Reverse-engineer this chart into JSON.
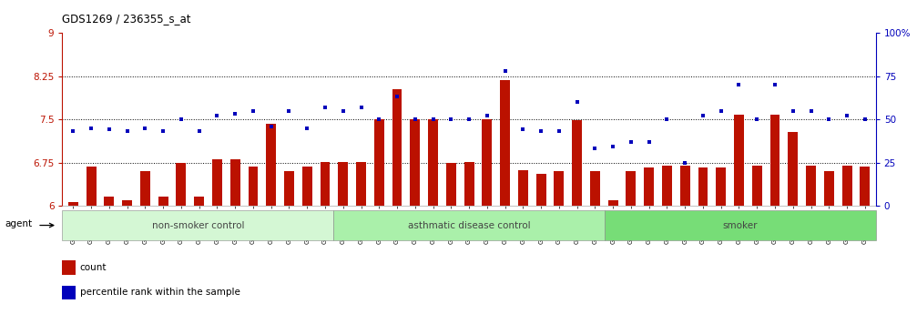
{
  "title": "GDS1269 / 236355_s_at",
  "samples": [
    "GSM38345",
    "GSM38346",
    "GSM38348",
    "GSM38350",
    "GSM38351",
    "GSM38353",
    "GSM38355",
    "GSM38356",
    "GSM38358",
    "GSM38362",
    "GSM38368",
    "GSM38371",
    "GSM38373",
    "GSM38377",
    "GSM38385",
    "GSM38361",
    "GSM38363",
    "GSM38364",
    "GSM38365",
    "GSM38370",
    "GSM38372",
    "GSM38375",
    "GSM38378",
    "GSM38379",
    "GSM38381",
    "GSM38383",
    "GSM38386",
    "GSM38387",
    "GSM38388",
    "GSM38389",
    "GSM38347",
    "GSM38349",
    "GSM38352",
    "GSM38354",
    "GSM38357",
    "GSM38359",
    "GSM38360",
    "GSM38366",
    "GSM38367",
    "GSM38369",
    "GSM38374",
    "GSM38376",
    "GSM38380",
    "GSM38382",
    "GSM38384"
  ],
  "bar_values": [
    6.07,
    6.68,
    6.16,
    6.1,
    6.6,
    6.16,
    6.75,
    6.16,
    6.8,
    6.8,
    6.68,
    7.42,
    6.6,
    6.68,
    6.76,
    6.76,
    6.76,
    7.5,
    8.02,
    7.5,
    7.5,
    6.74,
    6.76,
    7.5,
    8.18,
    6.62,
    6.56,
    6.6,
    7.48,
    6.6,
    6.1,
    6.6,
    6.66,
    6.7,
    6.7,
    6.66,
    6.66,
    7.58,
    6.7,
    7.58,
    7.28,
    6.7,
    6.6,
    6.7,
    6.68
  ],
  "percentile_values": [
    43,
    45,
    44,
    43,
    45,
    43,
    50,
    43,
    52,
    53,
    55,
    46,
    55,
    45,
    57,
    55,
    57,
    50,
    63,
    50,
    50,
    50,
    50,
    52,
    78,
    44,
    43,
    43,
    60,
    33,
    34,
    37,
    37,
    50,
    25,
    52,
    55,
    70,
    50,
    70,
    55,
    55,
    50,
    52,
    50
  ],
  "group_labels": [
    "non-smoker control",
    "asthmatic disease control",
    "smoker"
  ],
  "group_sizes": [
    15,
    15,
    15
  ],
  "group_colors_left": [
    "#e8ffe8",
    "#ccffcc",
    "#aaddaa"
  ],
  "group_colors_right": [
    "#ccffcc",
    "#aaffaa",
    "#88cc88"
  ],
  "bar_color": "#bb1100",
  "dot_color": "#0000bb",
  "ylim_left": [
    6.0,
    9.0
  ],
  "ylim_right": [
    0,
    100
  ],
  "yticks_left": [
    6.0,
    6.75,
    7.5,
    8.25,
    9.0
  ],
  "yticks_right": [
    0,
    25,
    50,
    75,
    100
  ],
  "ytick_labels_left": [
    "6",
    "6.75",
    "7.5",
    "8.25",
    "9"
  ],
  "ytick_labels_right": [
    "0",
    "25",
    "50",
    "75",
    "100%"
  ],
  "hlines": [
    6.75,
    7.5,
    8.25
  ],
  "agent_label": "agent",
  "legend_items": [
    {
      "color": "#bb1100",
      "label": "count"
    },
    {
      "color": "#0000bb",
      "label": "percentile rank within the sample"
    }
  ],
  "fig_width": 10.07,
  "fig_height": 3.45,
  "dpi": 100
}
